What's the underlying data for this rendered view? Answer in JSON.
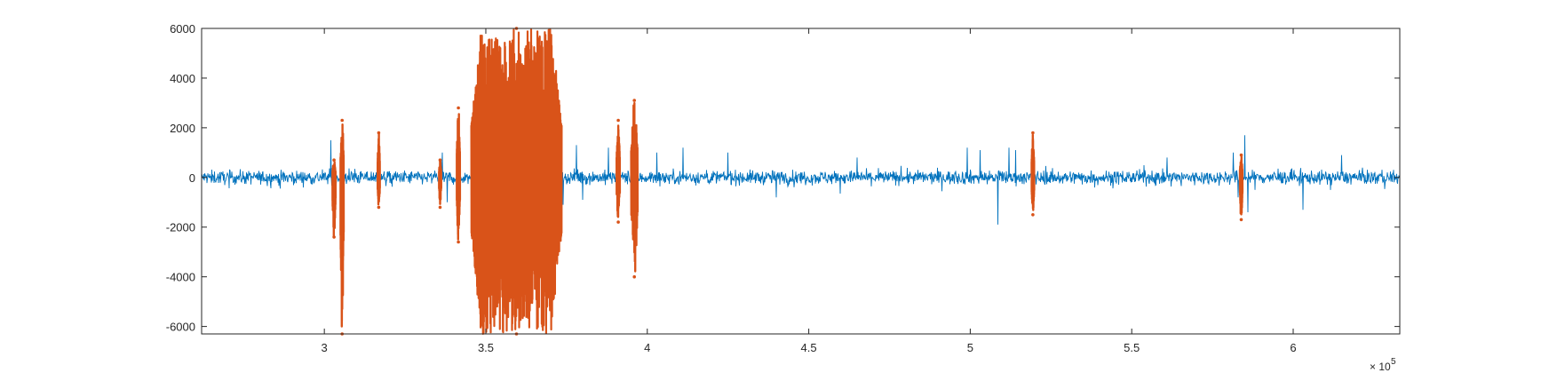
{
  "chart_data": {
    "type": "line",
    "title": "",
    "xlabel": "",
    "ylabel": "",
    "xlim": [
      262000,
      633000
    ],
    "ylim": [
      -6300,
      6000
    ],
    "x_tick_values": [
      300000,
      350000,
      400000,
      450000,
      500000,
      550000,
      600000
    ],
    "x_tick_labels": [
      "3",
      "3.5",
      "4",
      "4.5",
      "5",
      "5.5",
      "6"
    ],
    "x_exponent": {
      "base": "× 10",
      "power": "5"
    },
    "y_tick_values": [
      -6000,
      -4000,
      -2000,
      0,
      2000,
      4000,
      6000
    ],
    "y_tick_labels": [
      "-6000",
      "-4000",
      "-2000",
      "0",
      "2000",
      "4000",
      "6000"
    ],
    "grid": false,
    "box": true,
    "colors": {
      "series_1": "#0072bd",
      "series_2": "#d95319",
      "axes": "#262626"
    },
    "series": [
      {
        "style": "line",
        "noise_amplitude": 250,
        "spikes": [
          {
            "x": 302000,
            "y": 1500
          },
          {
            "x": 302500,
            "y": -1300
          },
          {
            "x": 336500,
            "y": 1000
          },
          {
            "x": 338000,
            "y": -1000
          },
          {
            "x": 349000,
            "y": 1400
          },
          {
            "x": 349500,
            "y": -1200
          },
          {
            "x": 373000,
            "y": 1400
          },
          {
            "x": 374000,
            "y": -1100
          },
          {
            "x": 378000,
            "y": 1300
          },
          {
            "x": 380000,
            "y": -900
          },
          {
            "x": 388000,
            "y": 1200
          },
          {
            "x": 391000,
            "y": 1100
          },
          {
            "x": 403000,
            "y": 1000
          },
          {
            "x": 411000,
            "y": 1200
          },
          {
            "x": 425000,
            "y": 1000
          },
          {
            "x": 440000,
            "y": -800
          },
          {
            "x": 465000,
            "y": 800
          },
          {
            "x": 499000,
            "y": 1200
          },
          {
            "x": 503000,
            "y": 1100
          },
          {
            "x": 508500,
            "y": -1900
          },
          {
            "x": 512000,
            "y": 1200
          },
          {
            "x": 514000,
            "y": 1100
          },
          {
            "x": 561000,
            "y": 800
          },
          {
            "x": 581500,
            "y": 1000
          },
          {
            "x": 583000,
            "y": -800
          },
          {
            "x": 585000,
            "y": 1700
          },
          {
            "x": 586000,
            "y": -1400
          },
          {
            "x": 603000,
            "y": -1300
          },
          {
            "x": 615000,
            "y": 900
          }
        ]
      },
      {
        "style": "points",
        "bursts": [
          {
            "x_start": 302500,
            "x_end": 303500,
            "y_min": -2400,
            "y_max": 700
          },
          {
            "x_start": 305000,
            "x_end": 306000,
            "y_min": -6300,
            "y_max": 2300
          },
          {
            "x_start": 316500,
            "x_end": 317200,
            "y_min": -1200,
            "y_max": 1800
          },
          {
            "x_start": 335500,
            "x_end": 336200,
            "y_min": -1200,
            "y_max": 700
          },
          {
            "x_start": 341000,
            "x_end": 342000,
            "y_min": -2600,
            "y_max": 2800
          },
          {
            "x_start": 345500,
            "x_end": 373500,
            "y_min": -6300,
            "y_max": 6000
          },
          {
            "x_start": 390500,
            "x_end": 391500,
            "y_min": -1800,
            "y_max": 2300
          },
          {
            "x_start": 395000,
            "x_end": 397000,
            "y_min": -4000,
            "y_max": 3100
          },
          {
            "x_start": 519000,
            "x_end": 519800,
            "y_min": -1500,
            "y_max": 1800
          },
          {
            "x_start": 583500,
            "x_end": 584300,
            "y_min": -1700,
            "y_max": 900
          }
        ]
      }
    ]
  }
}
